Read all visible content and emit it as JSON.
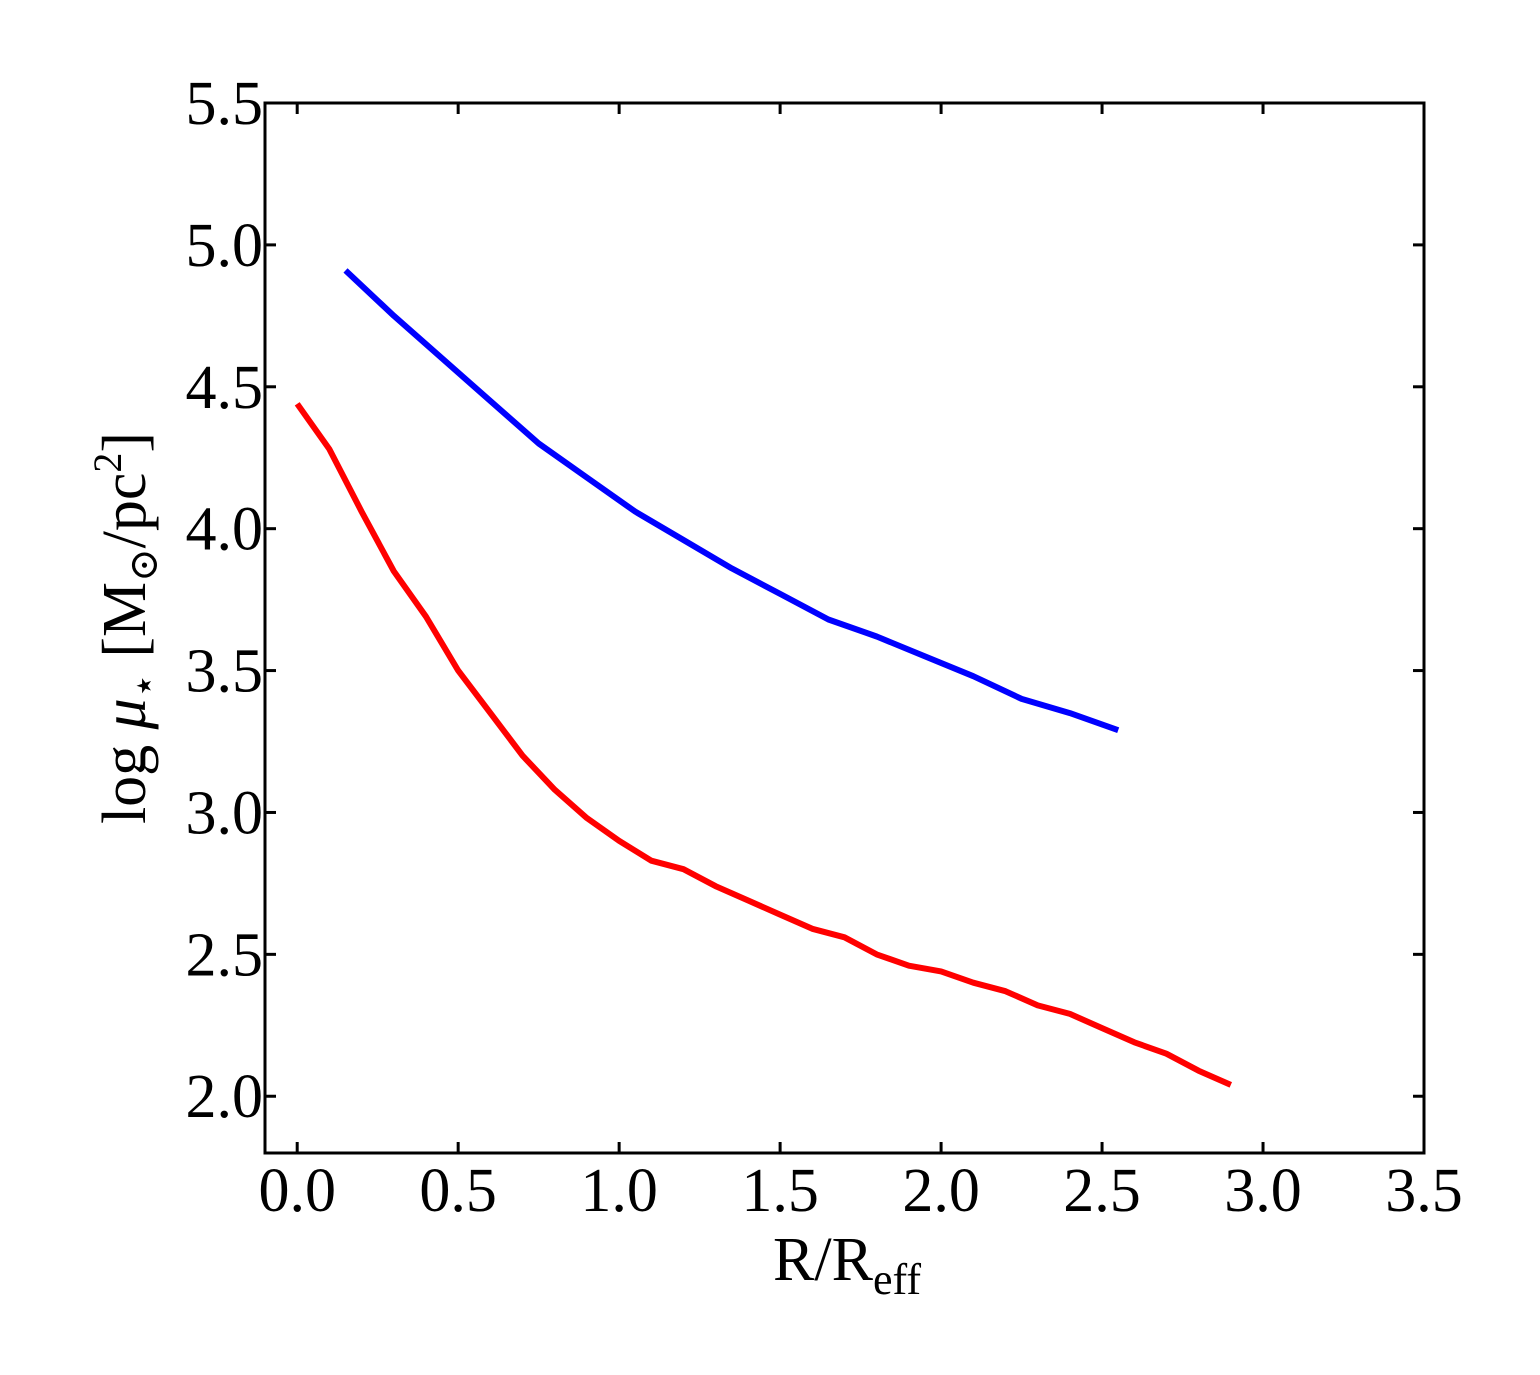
{
  "chart_data": {
    "type": "line",
    "title": "",
    "xlabel": {
      "main": "R/R",
      "sub": "eff"
    },
    "ylabel": {
      "prefix": "log ",
      "mu": "μ",
      "star": "⋆",
      "open": " [M",
      "sun": "⊙",
      "unit": "/pc",
      "exp": "2",
      "close": "]"
    },
    "xlim": [
      -0.1,
      3.5
    ],
    "ylim": [
      1.8,
      5.5
    ],
    "xticks": [
      0.0,
      0.5,
      1.0,
      1.5,
      2.0,
      2.5,
      3.0,
      3.5
    ],
    "xtick_labels": [
      "0.0",
      "0.5",
      "1.0",
      "1.5",
      "2.0",
      "2.5",
      "3.0",
      "3.5"
    ],
    "yticks": [
      2.0,
      2.5,
      3.0,
      3.5,
      4.0,
      4.5,
      5.0,
      5.5
    ],
    "ytick_labels": [
      "2.0",
      "2.5",
      "3.0",
      "3.5",
      "4.0",
      "4.5",
      "5.0",
      "5.5"
    ],
    "grid": false,
    "series": [
      {
        "color": "#0000ff",
        "x": [
          0.15,
          0.3,
          0.45,
          0.6,
          0.75,
          0.9,
          1.05,
          1.2,
          1.35,
          1.5,
          1.65,
          1.8,
          1.95,
          2.1,
          2.25,
          2.4,
          2.55
        ],
        "y": [
          4.91,
          4.75,
          4.6,
          4.45,
          4.3,
          4.18,
          4.06,
          3.96,
          3.86,
          3.77,
          3.68,
          3.62,
          3.55,
          3.48,
          3.4,
          3.35,
          3.29
        ]
      },
      {
        "color": "#ff0000",
        "x": [
          0.0,
          0.1,
          0.2,
          0.3,
          0.4,
          0.5,
          0.6,
          0.7,
          0.8,
          0.9,
          1.0,
          1.1,
          1.2,
          1.3,
          1.4,
          1.5,
          1.6,
          1.7,
          1.8,
          1.9,
          2.0,
          2.1,
          2.2,
          2.3,
          2.4,
          2.5,
          2.6,
          2.7,
          2.8,
          2.9
        ],
        "y": [
          4.44,
          4.28,
          4.06,
          3.85,
          3.69,
          3.5,
          3.35,
          3.2,
          3.08,
          2.98,
          2.9,
          2.83,
          2.8,
          2.74,
          2.69,
          2.64,
          2.59,
          2.56,
          2.5,
          2.46,
          2.44,
          2.4,
          2.37,
          2.32,
          2.29,
          2.24,
          2.19,
          2.15,
          2.09,
          2.04
        ]
      }
    ]
  }
}
